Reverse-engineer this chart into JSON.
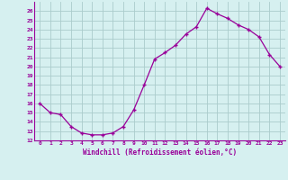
{
  "x": [
    0,
    1,
    2,
    3,
    4,
    5,
    6,
    7,
    8,
    9,
    10,
    11,
    12,
    13,
    14,
    15,
    16,
    17,
    18,
    19,
    20,
    21,
    22,
    23
  ],
  "y": [
    16,
    15,
    14.8,
    13.5,
    12.8,
    12.6,
    12.6,
    12.8,
    13.5,
    15.3,
    18.0,
    20.8,
    21.5,
    22.3,
    23.5,
    24.3,
    26.3,
    25.7,
    25.2,
    24.5,
    24.0,
    23.2,
    21.3,
    20.0
  ],
  "line_color": "#990099",
  "marker": "+",
  "marker_size": 3,
  "bg_color": "#d6f0f0",
  "grid_color": "#aacccc",
  "xlabel": "Windchill (Refroidissement éolien,°C)",
  "xlabel_color": "#990099",
  "tick_color": "#990099",
  "xlim": [
    -0.5,
    23.5
  ],
  "ylim": [
    12,
    27
  ],
  "yticks": [
    12,
    13,
    14,
    15,
    16,
    17,
    18,
    19,
    20,
    21,
    22,
    23,
    24,
    25,
    26
  ],
  "xticks": [
    0,
    1,
    2,
    3,
    4,
    5,
    6,
    7,
    8,
    9,
    10,
    11,
    12,
    13,
    14,
    15,
    16,
    17,
    18,
    19,
    20,
    21,
    22,
    23
  ],
  "xtick_labels": [
    "0",
    "1",
    "2",
    "3",
    "4",
    "5",
    "6",
    "7",
    "8",
    "9",
    "10",
    "11",
    "12",
    "13",
    "14",
    "15",
    "16",
    "17",
    "18",
    "19",
    "20",
    "21",
    "22",
    "23"
  ],
  "ytick_labels": [
    "12",
    "13",
    "14",
    "15",
    "16",
    "17",
    "18",
    "19",
    "20",
    "21",
    "22",
    "23",
    "24",
    "25",
    "26"
  ]
}
